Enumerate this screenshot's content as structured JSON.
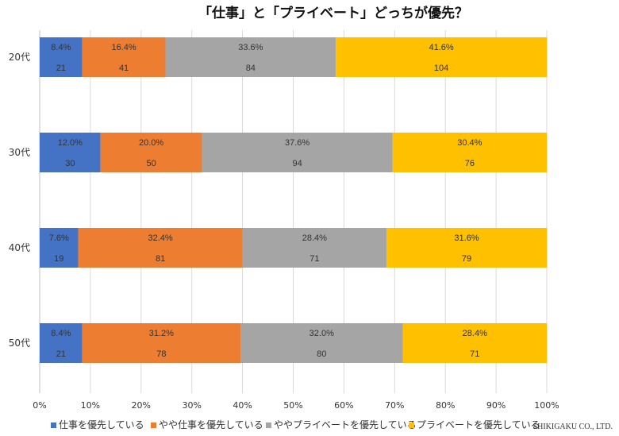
{
  "chart_data": {
    "type": "bar",
    "orientation": "horizontal",
    "stacked": true,
    "title": "「仕事」と「プライベート」どっちが優先？",
    "categories": [
      "20代",
      "30代",
      "40代",
      "50代"
    ],
    "series": [
      {
        "name": "仕事を優先している",
        "color": "#4472c4",
        "percent_labels": [
          "8.4%",
          "12.0%",
          "7.6%",
          "8.4%"
        ],
        "percent": [
          8.4,
          12.0,
          7.6,
          8.4
        ],
        "counts": [
          21,
          30,
          19,
          21
        ]
      },
      {
        "name": "やや仕事を優先している",
        "color": "#ed7d31",
        "percent_labels": [
          "16.4%",
          "20.0%",
          "32.4%",
          "31.2%"
        ],
        "percent": [
          16.4,
          20.0,
          32.4,
          31.2
        ],
        "counts": [
          41,
          50,
          81,
          78
        ]
      },
      {
        "name": "ややプライベートを優先している",
        "color": "#a5a5a5",
        "percent_labels": [
          "33.6%",
          "37.6%",
          "28.4%",
          "32.0%"
        ],
        "percent": [
          33.6,
          37.6,
          28.4,
          32.0
        ],
        "counts": [
          84,
          94,
          71,
          80
        ]
      },
      {
        "name": "プライベートを優先している",
        "color": "#ffc000",
        "percent_labels": [
          "41.6%",
          "30.4%",
          "31.6%",
          "28.4%"
        ],
        "percent": [
          41.6,
          30.4,
          31.6,
          28.4
        ],
        "counts": [
          104,
          76,
          79,
          71
        ]
      }
    ],
    "xlim": [
      0,
      100
    ],
    "xticks": [
      "0%",
      "10%",
      "20%",
      "30%",
      "40%",
      "50%",
      "60%",
      "70%",
      "80%",
      "90%",
      "100%"
    ],
    "grid": true,
    "legend_position": "bottom"
  },
  "credit": "SHIKIGAKU CO., LTD."
}
